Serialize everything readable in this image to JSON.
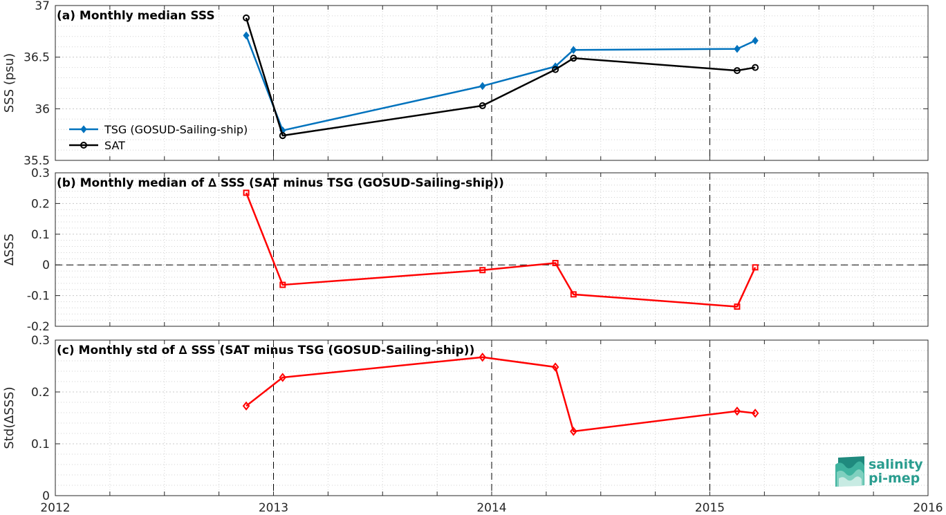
{
  "colors": {
    "tsg": "#0072BD",
    "sat": "#000000",
    "delta": "#FF0000",
    "grid": "#d0d0d0",
    "logo": "#2a9d8f"
  },
  "x_ticks": [
    2012,
    2013,
    2014,
    2015,
    2016
  ],
  "logo": {
    "line1": "salinity",
    "line2": "pi-mep"
  },
  "chart_data": [
    {
      "type": "line",
      "title": "(a) Monthly median SSS",
      "ylabel": "SSS (psu)",
      "xlim": [
        2012,
        2016
      ],
      "ylim": [
        35.5,
        37
      ],
      "yticks": [
        "35.5",
        "36",
        "36.5",
        "37"
      ],
      "ytick_values": [
        35.5,
        36,
        36.5,
        37
      ],
      "grid": true,
      "legend_position": "lower-left",
      "series": [
        {
          "name": "TSG (GOSUD-Sailing-ship)",
          "marker": "diamond",
          "color": "#0072BD",
          "x": [
            2012.875,
            2013.042,
            2013.958,
            2014.292,
            2014.375,
            2015.125,
            2015.208
          ],
          "y": [
            36.71,
            35.79,
            36.22,
            36.41,
            36.57,
            36.58,
            36.66
          ]
        },
        {
          "name": "SAT",
          "marker": "circle",
          "color": "#000000",
          "x": [
            2012.875,
            2013.042,
            2013.958,
            2014.292,
            2014.375,
            2015.125,
            2015.208
          ],
          "y": [
            36.88,
            35.74,
            36.03,
            36.38,
            36.49,
            36.37,
            36.4
          ]
        }
      ],
      "vlines": [
        2013,
        2014,
        2015
      ]
    },
    {
      "type": "line",
      "title": "(b) Monthly median of ∆ SSS (SAT minus TSG (GOSUD-Sailing-ship))",
      "ylabel": "∆SSS",
      "xlim": [
        2012,
        2016
      ],
      "ylim": [
        -0.2,
        0.3
      ],
      "yticks": [
        "-0.2",
        "-0.1",
        "0",
        "0.1",
        "0.2",
        "0.3"
      ],
      "ytick_values": [
        -0.2,
        -0.1,
        0,
        0.1,
        0.2,
        0.3
      ],
      "grid": true,
      "series": [
        {
          "marker": "square",
          "color": "#FF0000",
          "x": [
            2012.875,
            2013.042,
            2013.958,
            2014.292,
            2014.375,
            2015.125,
            2015.208
          ],
          "y": [
            0.235,
            -0.065,
            -0.017,
            0.006,
            -0.096,
            -0.136,
            -0.008
          ]
        }
      ],
      "hlines": [
        0
      ],
      "vlines": [
        2013,
        2014,
        2015
      ]
    },
    {
      "type": "line",
      "title": "(c) Monthly std of ∆ SSS (SAT minus TSG (GOSUD-Sailing-ship))",
      "ylabel": "Std(∆SSS)",
      "xlabel": "",
      "xlim": [
        2012,
        2016
      ],
      "ylim": [
        0,
        0.3
      ],
      "yticks": [
        "0",
        "0.1",
        "0.2",
        "0.3"
      ],
      "ytick_values": [
        0,
        0.1,
        0.2,
        0.3
      ],
      "grid": true,
      "series": [
        {
          "marker": "diamond-open",
          "color": "#FF0000",
          "x": [
            2012.875,
            2013.042,
            2013.958,
            2014.292,
            2014.375,
            2015.125,
            2015.208
          ],
          "y": [
            0.173,
            0.228,
            0.267,
            0.248,
            0.124,
            0.163,
            0.159
          ]
        }
      ],
      "vlines": [
        2013,
        2014,
        2015
      ]
    }
  ]
}
